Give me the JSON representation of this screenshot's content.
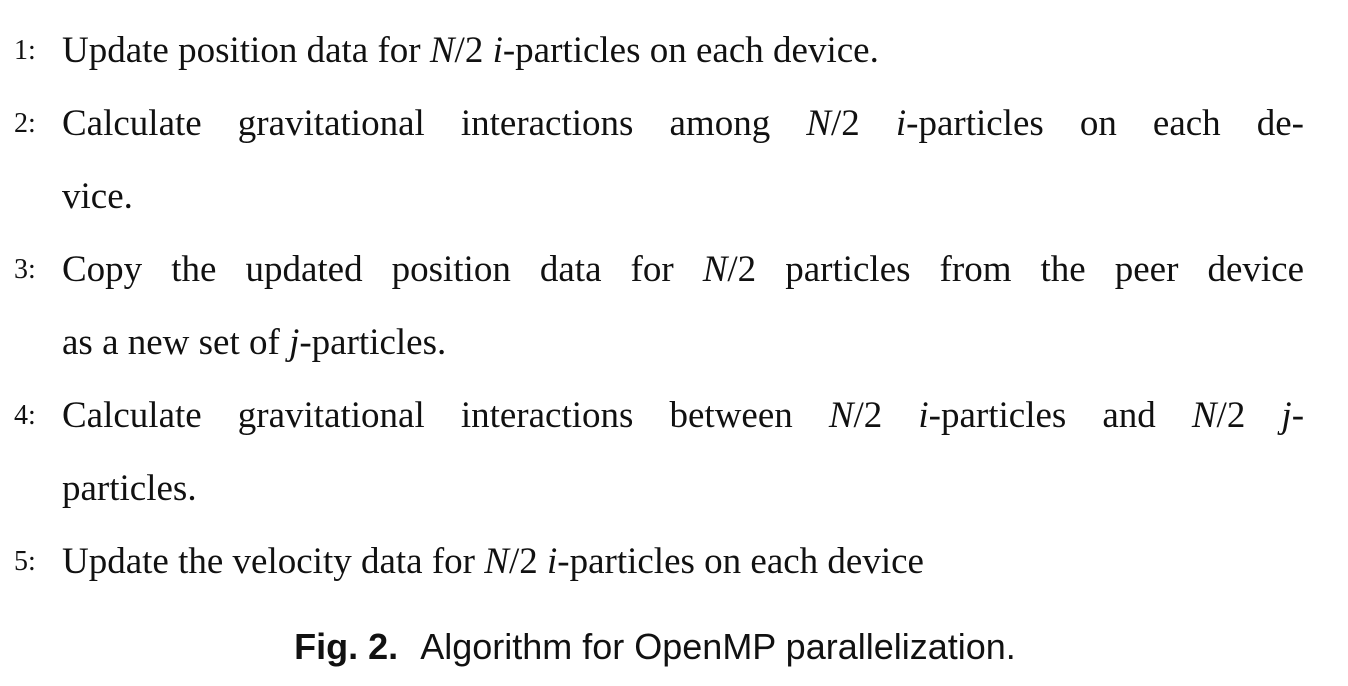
{
  "algorithm": {
    "steps": [
      {
        "number": "1:",
        "pre": "Update position data for ",
        "math1": "N",
        "mid1": "/2 ",
        "math2": "i",
        "post": "-particles on each device."
      },
      {
        "number": "2:",
        "line1_pre": "Calculate gravitational interactions among ",
        "math1": "N",
        "mid1": "/2 ",
        "math2": "i",
        "line1_post": "-particles on each de-",
        "line2": "vice."
      },
      {
        "number": "3:",
        "line1_pre": "Copy the updated position data for ",
        "math1": "N",
        "line1_post": "/2 particles from the peer device",
        "line2_pre": "as a new set of ",
        "math2": "j",
        "line2_post": "-particles."
      },
      {
        "number": "4:",
        "line1_pre": "Calculate gravitational interactions between ",
        "math1": "N",
        "mid1": "/2 ",
        "math2": "i",
        "mid2": "-particles and ",
        "math3": "N",
        "mid3": "/2 ",
        "math4": "j",
        "line1_post": "-",
        "line2": "particles."
      },
      {
        "number": "5:",
        "pre": "Update the velocity data for ",
        "math1": "N",
        "mid1": "/2 ",
        "math2": "i",
        "post": "-particles on each device"
      }
    ]
  },
  "caption": {
    "label": "Fig. 2.",
    "text": "Algorithm for OpenMP parallelization."
  }
}
